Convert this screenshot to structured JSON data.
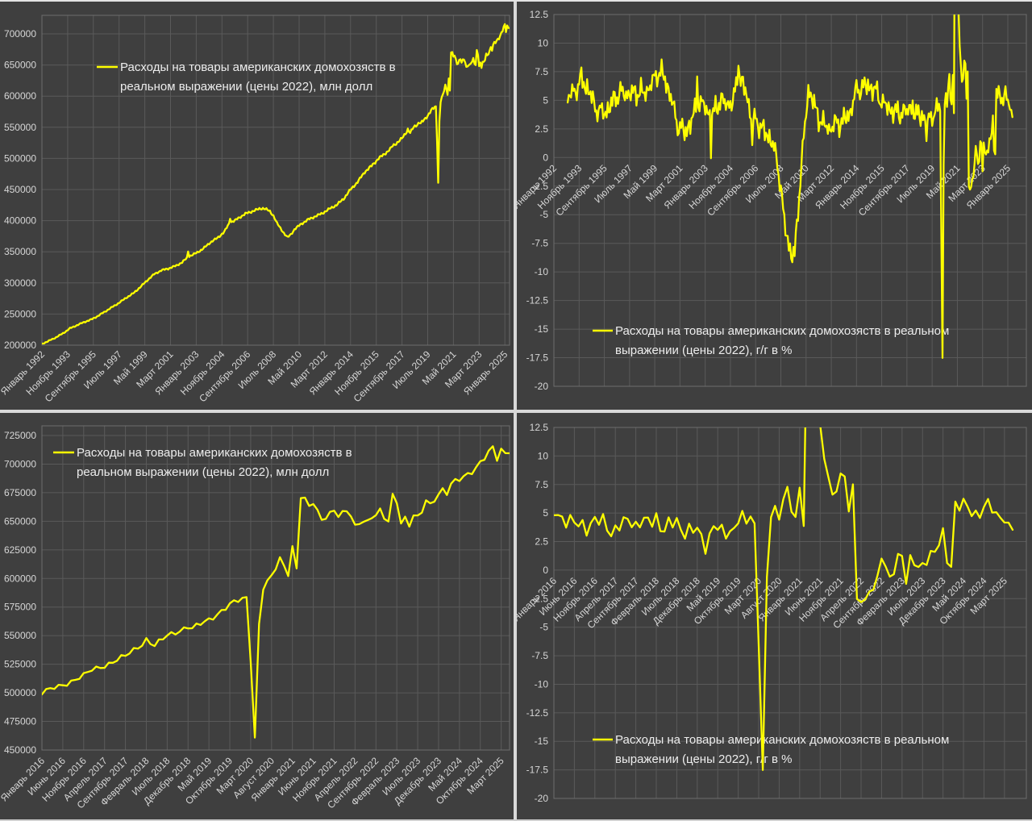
{
  "page": {
    "background": "#3f3f3f",
    "grid_color": "#5a5a5a",
    "plot_border_color": "#6e6e6e",
    "tick_text_color": "#d6d6d6",
    "legend_text_color": "#ededed",
    "separator_color": "#d9d9d9",
    "series_color": "#ffff00"
  },
  "chart_data": [
    {
      "id": "goods-level-1992",
      "type": "line",
      "position": "top-left",
      "legend_lines": [
        "Расходы на товары американских домохозяств в",
        "реальном выражении (цены 2022), млн долл"
      ],
      "series_name": "Расходы на товары американских домохозяств в реальном выражении (цены 2022), млн долл",
      "series_color": "#ffff00",
      "x_start": "1992-01",
      "x_end": "2025-05",
      "x_tick_interval_months": 22,
      "x_tick_labels": [
        "Январь 1992",
        "Ноябрь 1993",
        "Сентябрь 1995",
        "Июль 1997",
        "Май 1999",
        "Март 2001",
        "Январь 2003",
        "Ноябрь 2004",
        "Сентябрь 2006",
        "Июль 2008",
        "Май 2010",
        "Март 2012",
        "Январь 2014",
        "Ноябрь 2015",
        "Сентябрь 2017",
        "Июль 2019",
        "Май 2021",
        "Март 2023",
        "Январь 2025"
      ],
      "y_ticks": [
        700000,
        650000,
        600000,
        550000,
        500000,
        450000,
        400000,
        350000,
        300000,
        250000,
        200000
      ],
      "ylim": [
        200000,
        730000
      ],
      "grid": true,
      "axis_label_position": "bottom",
      "anchors": [
        [
          "1992-01",
          202000
        ],
        [
          "1992-07",
          207000
        ],
        [
          "1993-01",
          212500
        ],
        [
          "1993-07",
          219000
        ],
        [
          "1994-01",
          227000
        ],
        [
          "1994-07",
          232000
        ],
        [
          "1995-01",
          237000
        ],
        [
          "1995-07",
          241000
        ],
        [
          "1996-01",
          247000
        ],
        [
          "1996-07",
          254000
        ],
        [
          "1997-01",
          261000
        ],
        [
          "1997-07",
          268000
        ],
        [
          "1998-01",
          276000
        ],
        [
          "1998-07",
          283000
        ],
        [
          "1999-01",
          293000
        ],
        [
          "1999-07",
          304000
        ],
        [
          "2000-01",
          314000
        ],
        [
          "2000-07",
          320000
        ],
        [
          "2001-01",
          323000
        ],
        [
          "2001-07",
          327000
        ],
        [
          "2002-01",
          333000
        ],
        [
          "2002-05",
          340000
        ],
        [
          "2002-06",
          351000
        ],
        [
          "2002-07",
          343000
        ],
        [
          "2002-10",
          345000
        ],
        [
          "2003-01",
          348000
        ],
        [
          "2003-07",
          355000
        ],
        [
          "2004-01",
          365000
        ],
        [
          "2004-07",
          372000
        ],
        [
          "2005-01",
          382000
        ],
        [
          "2005-05",
          395000
        ],
        [
          "2005-06",
          405000
        ],
        [
          "2005-07",
          398000
        ],
        [
          "2005-10",
          400000
        ],
        [
          "2006-01",
          404000
        ],
        [
          "2006-07",
          411000
        ],
        [
          "2007-01",
          415000
        ],
        [
          "2007-07",
          419000
        ],
        [
          "2007-10",
          420000
        ],
        [
          "2008-01",
          418000
        ],
        [
          "2008-04",
          415000
        ],
        [
          "2008-07",
          408000
        ],
        [
          "2008-10",
          396000
        ],
        [
          "2009-01",
          388000
        ],
        [
          "2009-04",
          380000
        ],
        [
          "2009-07",
          373000
        ],
        [
          "2009-10",
          378000
        ],
        [
          "2010-01",
          386000
        ],
        [
          "2010-07",
          395000
        ],
        [
          "2011-01",
          402000
        ],
        [
          "2011-07",
          407000
        ],
        [
          "2012-01",
          412000
        ],
        [
          "2012-07",
          419000
        ],
        [
          "2013-01",
          425000
        ],
        [
          "2013-07",
          435000
        ],
        [
          "2014-01",
          450000
        ],
        [
          "2014-07",
          462000
        ],
        [
          "2015-01",
          478000
        ],
        [
          "2015-07",
          488000
        ],
        [
          "2016-01",
          500000
        ],
        [
          "2016-06",
          507000
        ],
        [
          "2016-11",
          515000
        ],
        [
          "2017-01",
          520000
        ],
        [
          "2017-04",
          524000
        ],
        [
          "2017-09",
          532000
        ],
        [
          "2018-01",
          543000
        ],
        [
          "2018-02",
          547000
        ],
        [
          "2018-04",
          541000
        ],
        [
          "2018-07",
          550000
        ],
        [
          "2018-12",
          558000
        ],
        [
          "2019-01",
          556000
        ],
        [
          "2019-05",
          564000
        ],
        [
          "2019-10",
          577000
        ],
        [
          "2020-01",
          582000
        ],
        [
          "2020-02",
          583000
        ],
        [
          "2020-03",
          530000
        ],
        [
          "2020-04",
          461000
        ],
        [
          "2020-05",
          560000
        ],
        [
          "2020-06",
          592000
        ],
        [
          "2020-08",
          601000
        ],
        [
          "2020-10",
          617000
        ],
        [
          "2020-12",
          605000
        ],
        [
          "2021-01",
          628000
        ],
        [
          "2021-02",
          609000
        ],
        [
          "2021-03",
          672000
        ],
        [
          "2021-04",
          668000
        ],
        [
          "2021-05",
          662000
        ],
        [
          "2021-06",
          666000
        ],
        [
          "2021-07",
          658000
        ],
        [
          "2021-08",
          652000
        ],
        [
          "2021-09",
          655000
        ],
        [
          "2021-11",
          660000
        ],
        [
          "2021-12",
          655000
        ],
        [
          "2022-01",
          656000
        ],
        [
          "2022-02",
          658000
        ],
        [
          "2022-03",
          655000
        ],
        [
          "2022-04",
          645000
        ],
        [
          "2022-05",
          649000
        ],
        [
          "2022-06",
          652000
        ],
        [
          "2022-07",
          650000
        ],
        [
          "2022-08",
          654000
        ],
        [
          "2022-10",
          658000
        ],
        [
          "2022-11",
          652000
        ],
        [
          "2022-12",
          650000
        ],
        [
          "2023-01",
          672000
        ],
        [
          "2023-02",
          668000
        ],
        [
          "2023-03",
          650000
        ],
        [
          "2023-04",
          653000
        ],
        [
          "2023-05",
          647000
        ],
        [
          "2023-06",
          655000
        ],
        [
          "2023-07",
          652000
        ],
        [
          "2023-08",
          658000
        ],
        [
          "2023-09",
          668000
        ],
        [
          "2023-10",
          664000
        ],
        [
          "2023-11",
          670000
        ],
        [
          "2023-12",
          675000
        ],
        [
          "2024-01",
          678000
        ],
        [
          "2024-02",
          675000
        ],
        [
          "2024-03",
          682000
        ],
        [
          "2024-05",
          686000
        ],
        [
          "2024-07",
          691000
        ],
        [
          "2024-09",
          698000
        ],
        [
          "2024-10",
          702000
        ],
        [
          "2024-12",
          710000
        ],
        [
          "2025-01",
          713000
        ],
        [
          "2025-02",
          704000
        ],
        [
          "2025-03",
          712000
        ],
        [
          "2025-04",
          709000
        ],
        [
          "2025-05",
          713000
        ]
      ]
    },
    {
      "id": "goods-yoy-1992",
      "type": "line",
      "position": "top-right",
      "legend_lines": [
        "Расходы на товары американских домохозяств в реальном",
        "выражении (цены 2022), г/г в %"
      ],
      "series_name": "Расходы на товары американских домохозяств в реальном выражении (цены 2022), г/г в %",
      "series_color": "#ffff00",
      "source_series": "goods-level-1992",
      "transform": "yoy_percent_12mo",
      "x_start": "1993-01",
      "x_end": "2025-05",
      "x_tick_interval_months": 22,
      "x_tick_labels": [
        "Январь 1992",
        "Ноябрь 1993",
        "Сентябрь 1995",
        "Июль 1997",
        "Май 1999",
        "Март 2001",
        "Январь 2003",
        "Ноябрь 2004",
        "Сентябрь 2006",
        "Июль 2008",
        "Май 2010",
        "Март 2012",
        "Январь 2014",
        "Ноябрь 2015",
        "Сентябрь 2017",
        "Июль 2019",
        "Май 2021",
        "Март 2023",
        "Январь 2025"
      ],
      "y_ticks": [
        12.5,
        10,
        7.5,
        5,
        2.5,
        0,
        -2.5,
        -5,
        -7.5,
        -10,
        -12.5,
        -15,
        -17.5,
        -20
      ],
      "ylim": [
        -20,
        12.5
      ],
      "clip_above": 12.5,
      "grid": true,
      "axis_label_position": "zero"
    },
    {
      "id": "goods-level-2016",
      "type": "line",
      "position": "bottom-left",
      "legend_lines": [
        "Расходы на товары американских домохозяств в",
        "реальном выражении (цены 2022), млн долл"
      ],
      "series_name": "Расходы на товары американских домохозяств в реальном выражении (цены 2022), млн долл",
      "series_color": "#ffff00",
      "source_series": "goods-level-1992",
      "transform": "slice",
      "x_start": "2016-01",
      "x_end": "2025-05",
      "x_tick_interval_months": 5,
      "x_tick_labels": [
        "Январь 2016",
        "Июнь 2016",
        "Ноябрь 2016",
        "Апрель 2017",
        "Сентябрь 2017",
        "Февраль 2018",
        "Июль 2018",
        "Декабрь 2018",
        "Май 2019",
        "Октябрь 2019",
        "Март 2020",
        "Август 2020",
        "Январь 2021",
        "Июнь 2021",
        "Ноябрь 2021",
        "Апрель 2022",
        "Сентябрь 2022",
        "Февраль 2023",
        "Июль 2023",
        "Декабрь 2023",
        "Май 2024",
        "Октябрь 2024",
        "Март 2025"
      ],
      "y_ticks": [
        725000,
        700000,
        675000,
        650000,
        625000,
        600000,
        575000,
        550000,
        525000,
        500000,
        475000,
        450000
      ],
      "ylim": [
        450000,
        733000
      ],
      "grid": true,
      "axis_label_position": "bottom"
    },
    {
      "id": "goods-yoy-2016",
      "type": "line",
      "position": "bottom-right",
      "legend_lines": [
        "Расходы на товары американских домохозяств в реальном",
        "выражении (цены 2022), г/г в %"
      ],
      "series_name": "Расходы на товары американских домохозяств в реальном выражении (цены 2022), г/г в %",
      "series_color": "#ffff00",
      "source_series": "goods-level-1992",
      "transform": "yoy_percent_12mo",
      "x_start": "2016-01",
      "x_end": "2025-05",
      "x_tick_interval_months": 5,
      "x_tick_labels": [
        "Январь 2016",
        "Июнь 2016",
        "Ноябрь 2016",
        "Апрель 2017",
        "Сентябрь 2017",
        "Февраль 2018",
        "Июль 2018",
        "Декабрь 2018",
        "Май 2019",
        "Октябрь 2019",
        "Март 2020",
        "Август 2020",
        "Январь 2021",
        "Июнь 2021",
        "Ноябрь 2021",
        "Апрель 2022",
        "Сентябрь 2022",
        "Февраль 2023",
        "Июль 2023",
        "Декабрь 2023",
        "Май 2024",
        "Октябрь 2024",
        "Март 2025"
      ],
      "y_ticks": [
        12.5,
        10,
        7.5,
        5,
        2.5,
        0,
        -2.5,
        -5,
        -7.5,
        -10,
        -12.5,
        -15,
        -17.5,
        -20
      ],
      "ylim": [
        -20,
        12.5
      ],
      "clip_above": 12.5,
      "grid": true,
      "axis_label_position": "zero"
    }
  ]
}
